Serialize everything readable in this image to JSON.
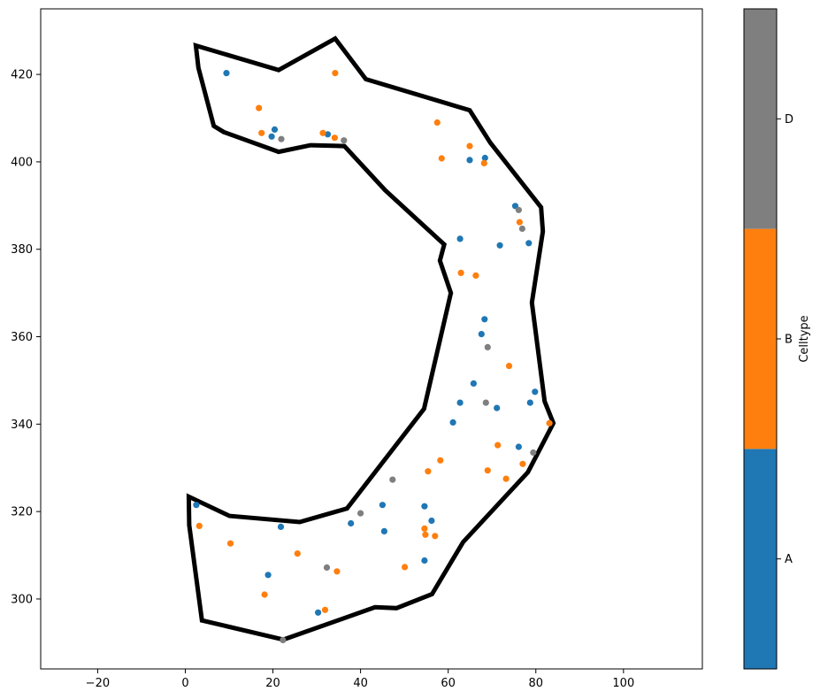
{
  "chart_data": {
    "type": "scatter",
    "xlim": [
      -33,
      118
    ],
    "ylim": [
      284,
      435
    ],
    "xticks": [
      -20,
      0,
      20,
      40,
      60,
      80,
      100
    ],
    "yticks": [
      300,
      320,
      340,
      360,
      380,
      400,
      420
    ],
    "grid": false,
    "boundary": {
      "color": "#000000",
      "points": [
        [
          2.4,
          426.6
        ],
        [
          21.3,
          421.0
        ],
        [
          34.2,
          428.2
        ],
        [
          41.2,
          418.9
        ],
        [
          64.9,
          411.8
        ],
        [
          69.6,
          404.4
        ],
        [
          81.2,
          389.6
        ],
        [
          81.6,
          384.1
        ],
        [
          79.1,
          367.8
        ],
        [
          82.0,
          345.2
        ],
        [
          84.0,
          340.2
        ],
        [
          78.2,
          329.0
        ],
        [
          63.4,
          313.0
        ],
        [
          56.3,
          301.1
        ],
        [
          48.2,
          297.9
        ],
        [
          43.3,
          298.1
        ],
        [
          22.4,
          290.7
        ],
        [
          3.8,
          295.1
        ],
        [
          0.9,
          316.9
        ],
        [
          0.8,
          323.4
        ],
        [
          10.1,
          319.0
        ],
        [
          26.1,
          317.6
        ],
        [
          36.9,
          320.7
        ],
        [
          54.5,
          343.5
        ],
        [
          60.6,
          370.0
        ],
        [
          58.1,
          377.4
        ],
        [
          59.1,
          381.1
        ],
        [
          45.6,
          393.5
        ],
        [
          36.3,
          403.6
        ],
        [
          28.6,
          403.8
        ],
        [
          21.3,
          402.3
        ],
        [
          8.8,
          406.8
        ],
        [
          6.5,
          408.2
        ],
        [
          3.0,
          421.5
        ]
      ]
    },
    "colorbar": {
      "label": "Celltype",
      "categories": [
        {
          "label": "A",
          "color": "#1f77b4"
        },
        {
          "label": "B",
          "color": "#ff7f0e"
        },
        {
          "label": "D",
          "color": "#7f7f7f"
        }
      ]
    },
    "series": [
      {
        "category": "A",
        "color": "#1f77b4",
        "points": [
          [
            9.4,
            420.3
          ],
          [
            20.4,
            407.4
          ],
          [
            19.7,
            405.8
          ],
          [
            32.5,
            406.3
          ],
          [
            64.9,
            400.4
          ],
          [
            68.4,
            400.9
          ],
          [
            75.3,
            389.9
          ],
          [
            62.7,
            382.4
          ],
          [
            71.8,
            380.9
          ],
          [
            78.4,
            381.4
          ],
          [
            68.3,
            364.0
          ],
          [
            67.6,
            360.6
          ],
          [
            65.8,
            349.3
          ],
          [
            79.8,
            347.4
          ],
          [
            62.7,
            344.9
          ],
          [
            71.1,
            343.7
          ],
          [
            78.7,
            344.9
          ],
          [
            61.1,
            340.4
          ],
          [
            76.1,
            334.8
          ],
          [
            2.5,
            321.5
          ],
          [
            45.0,
            321.5
          ],
          [
            54.6,
            321.2
          ],
          [
            56.2,
            317.9
          ],
          [
            37.8,
            317.3
          ],
          [
            21.8,
            316.5
          ],
          [
            45.4,
            315.5
          ],
          [
            54.6,
            308.8
          ],
          [
            18.9,
            305.5
          ],
          [
            30.3,
            296.9
          ]
        ]
      },
      {
        "category": "B",
        "color": "#ff7f0e",
        "points": [
          [
            34.2,
            420.3
          ],
          [
            16.8,
            412.3
          ],
          [
            17.4,
            406.6
          ],
          [
            31.4,
            406.6
          ],
          [
            34.1,
            405.5
          ],
          [
            57.5,
            409.0
          ],
          [
            64.9,
            403.6
          ],
          [
            58.5,
            400.8
          ],
          [
            68.2,
            399.7
          ],
          [
            76.3,
            386.2
          ],
          [
            62.9,
            374.6
          ],
          [
            66.3,
            374.0
          ],
          [
            73.9,
            353.3
          ],
          [
            83.1,
            340.2
          ],
          [
            71.3,
            335.2
          ],
          [
            58.2,
            331.7
          ],
          [
            55.4,
            329.2
          ],
          [
            69.0,
            329.4
          ],
          [
            77.0,
            330.9
          ],
          [
            73.2,
            327.5
          ],
          [
            3.2,
            316.7
          ],
          [
            54.6,
            316.1
          ],
          [
            54.8,
            314.7
          ],
          [
            57.0,
            314.4
          ],
          [
            10.3,
            312.7
          ],
          [
            25.6,
            310.4
          ],
          [
            50.1,
            307.3
          ],
          [
            34.6,
            306.3
          ],
          [
            18.1,
            301.0
          ],
          [
            31.9,
            297.5
          ]
        ]
      },
      {
        "category": "D",
        "color": "#7f7f7f",
        "points": [
          [
            21.9,
            405.2
          ],
          [
            36.2,
            404.9
          ],
          [
            76.1,
            389.0
          ],
          [
            76.9,
            384.7
          ],
          [
            69.0,
            357.6
          ],
          [
            68.6,
            344.9
          ],
          [
            79.4,
            333.5
          ],
          [
            47.3,
            327.3
          ],
          [
            40.0,
            319.6
          ],
          [
            32.3,
            307.2
          ],
          [
            22.3,
            290.6
          ]
        ]
      }
    ]
  }
}
